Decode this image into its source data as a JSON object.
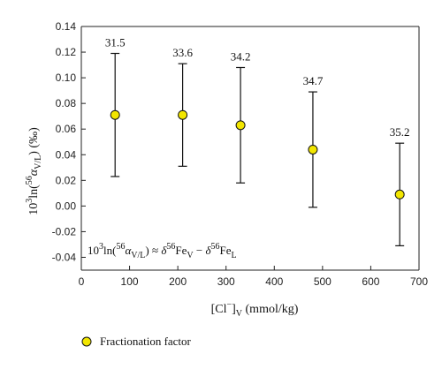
{
  "chart_data": {
    "type": "scatter",
    "title": "",
    "xlabel": "[Cl⁻]V (mmol/kg)",
    "ylabel": "10³ln(⁵⁶αV/L) (‰)",
    "xlim": [
      0,
      700
    ],
    "ylim": [
      -0.05,
      0.14
    ],
    "xticks": [
      0,
      100,
      200,
      300,
      400,
      500,
      600,
      700
    ],
    "yticks": [
      -0.04,
      -0.02,
      0.0,
      0.02,
      0.04,
      0.06,
      0.08,
      0.1,
      0.12,
      0.14
    ],
    "grid": false,
    "legend_position": "bottom-left",
    "series": [
      {
        "name": "Fractionation factor",
        "color": "#f2e600",
        "marker": "circle",
        "points": [
          {
            "x": 70,
            "y": 0.071,
            "yerr_low": 0.023,
            "yerr_high": 0.119,
            "label": "31.5"
          },
          {
            "x": 210,
            "y": 0.071,
            "yerr_low": 0.031,
            "yerr_high": 0.111,
            "label": "33.6"
          },
          {
            "x": 330,
            "y": 0.063,
            "yerr_low": 0.018,
            "yerr_high": 0.108,
            "label": "34.2"
          },
          {
            "x": 480,
            "y": 0.044,
            "yerr_low": -0.001,
            "yerr_high": 0.089,
            "label": "34.7"
          },
          {
            "x": 660,
            "y": 0.009,
            "yerr_low": -0.031,
            "yerr_high": 0.049,
            "label": "35.2"
          }
        ]
      }
    ],
    "annotations": [
      {
        "text": "10³ln(⁵⁶αV/L) ≈ δ⁵⁶FeV − δ⁵⁶FeL"
      }
    ]
  }
}
